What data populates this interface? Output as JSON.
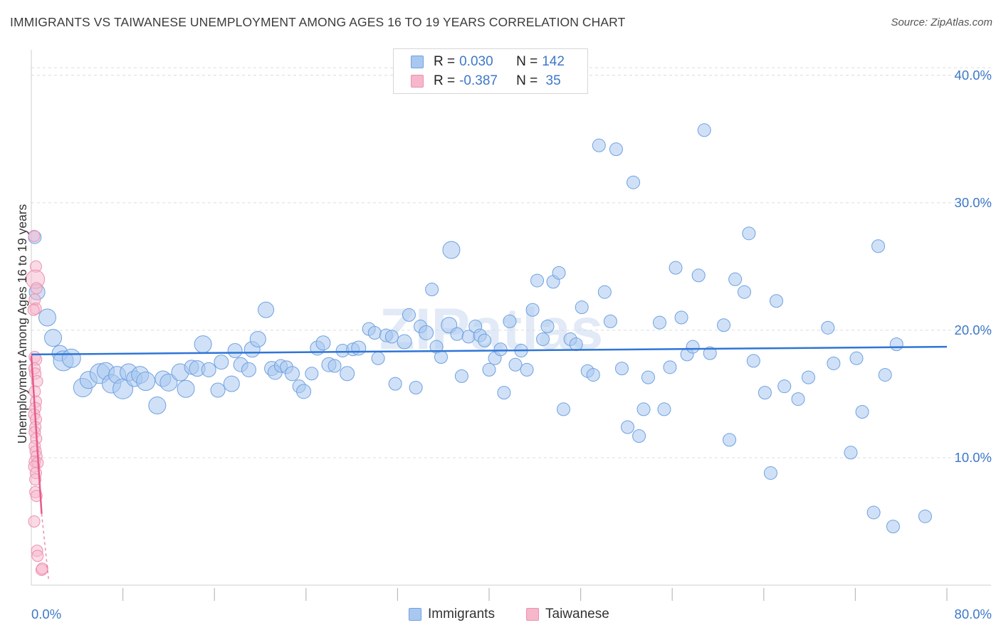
{
  "title": "IMMIGRANTS VS TAIWANESE UNEMPLOYMENT AMONG AGES 16 TO 19 YEARS CORRELATION CHART",
  "source": "Source: ZipAtlas.com",
  "colors": {
    "immigrants_fill": "#a9c8f0",
    "immigrants_stroke": "#6fa1e0",
    "immigrants_line": "#2f75d6",
    "taiwanese_fill": "#f6b7cb",
    "taiwanese_stroke": "#ee8fae",
    "taiwanese_line": "#e55c8a",
    "value_text": "#3d78c8",
    "grid": "#dcdcdc"
  },
  "legend": {
    "rows": [
      {
        "r_label": "R = ",
        "r_value": "0.030",
        "n_label": "N = ",
        "n_value": "142"
      },
      {
        "r_label": "R = ",
        "r_value": "-0.387",
        "n_label": "N = ",
        "n_value": " 35"
      }
    ]
  },
  "bottom_legend": [
    "Immigrants",
    "Taiwanese"
  ],
  "chart_data": {
    "type": "scatter",
    "ylabel": "Unemployment Among Ages 16 to 19 years",
    "xlim": [
      0,
      80
    ],
    "ylim": [
      0,
      42
    ],
    "x_tick_labels": [
      "0.0%",
      "80.0%"
    ],
    "y_ticks": [
      10,
      20,
      30,
      40
    ],
    "y_tick_labels": [
      "10.0%",
      "20.0%",
      "30.0%",
      "40.0%"
    ],
    "grid": true,
    "watermark": "ZIPatlas",
    "series": [
      {
        "name": "Immigrants",
        "trend": [
          [
            0,
            18.1
          ],
          [
            80,
            18.7
          ]
        ],
        "points": [
          [
            0.3,
            27.3,
            9
          ],
          [
            0.5,
            23.0,
            11
          ],
          [
            1.4,
            21.0,
            12
          ],
          [
            1.9,
            19.4,
            12
          ],
          [
            2.5,
            18.2,
            11
          ],
          [
            2.8,
            17.6,
            14
          ],
          [
            3.5,
            17.8,
            13
          ],
          [
            4.5,
            15.5,
            13
          ],
          [
            5.0,
            16.1,
            12
          ],
          [
            6.0,
            16.6,
            14
          ],
          [
            6.5,
            16.8,
            12
          ],
          [
            7.0,
            15.8,
            13
          ],
          [
            7.5,
            16.5,
            12
          ],
          [
            8.0,
            15.4,
            14
          ],
          [
            8.5,
            16.7,
            12
          ],
          [
            9.0,
            16.2,
            11
          ],
          [
            9.5,
            16.5,
            12
          ],
          [
            10.0,
            16.0,
            13
          ],
          [
            11.0,
            14.1,
            12
          ],
          [
            11.5,
            16.2,
            11
          ],
          [
            12.0,
            15.9,
            12
          ],
          [
            13.0,
            16.7,
            12
          ],
          [
            13.5,
            15.4,
            12
          ],
          [
            14.0,
            17.1,
            10
          ],
          [
            14.5,
            17.0,
            11
          ],
          [
            15.0,
            18.9,
            12
          ],
          [
            15.5,
            16.9,
            10
          ],
          [
            16.3,
            15.3,
            10
          ],
          [
            16.6,
            17.5,
            10
          ],
          [
            17.5,
            15.8,
            11
          ],
          [
            17.8,
            18.4,
            10
          ],
          [
            18.3,
            17.3,
            10
          ],
          [
            19.0,
            16.9,
            10
          ],
          [
            19.3,
            18.5,
            11
          ],
          [
            19.8,
            19.3,
            11
          ],
          [
            20.5,
            21.6,
            11
          ],
          [
            21.0,
            17.0,
            10
          ],
          [
            21.3,
            16.7,
            10
          ],
          [
            21.8,
            17.2,
            9
          ],
          [
            22.3,
            17.1,
            9
          ],
          [
            22.8,
            16.6,
            10
          ],
          [
            23.4,
            15.6,
            9
          ],
          [
            23.8,
            15.2,
            10
          ],
          [
            24.5,
            16.6,
            9
          ],
          [
            25.0,
            18.6,
            10
          ],
          [
            25.5,
            19.0,
            10
          ],
          [
            26.0,
            17.3,
            10
          ],
          [
            26.5,
            17.2,
            9
          ],
          [
            27.2,
            18.4,
            9
          ],
          [
            27.6,
            16.6,
            10
          ],
          [
            28.1,
            18.5,
            9
          ],
          [
            28.6,
            18.6,
            10
          ],
          [
            29.5,
            20.1,
            9
          ],
          [
            30.0,
            19.8,
            9
          ],
          [
            30.3,
            17.8,
            9
          ],
          [
            31.0,
            19.6,
            9
          ],
          [
            31.5,
            19.5,
            9
          ],
          [
            31.8,
            15.8,
            9
          ],
          [
            32.6,
            19.1,
            10
          ],
          [
            33.0,
            21.2,
            9
          ],
          [
            33.6,
            15.5,
            9
          ],
          [
            34.0,
            20.3,
            9
          ],
          [
            34.5,
            19.8,
            10
          ],
          [
            35.0,
            23.2,
            9
          ],
          [
            35.4,
            18.7,
            9
          ],
          [
            35.8,
            17.9,
            9
          ],
          [
            36.5,
            20.4,
            11
          ],
          [
            36.7,
            26.3,
            12
          ],
          [
            37.2,
            19.7,
            9
          ],
          [
            37.6,
            16.4,
            9
          ],
          [
            38.2,
            19.5,
            9
          ],
          [
            38.8,
            20.3,
            9
          ],
          [
            39.2,
            19.6,
            9
          ],
          [
            39.6,
            19.2,
            9
          ],
          [
            40.0,
            16.9,
            9
          ],
          [
            40.5,
            17.8,
            9
          ],
          [
            41.0,
            18.5,
            9
          ],
          [
            41.3,
            15.1,
            9
          ],
          [
            41.8,
            20.7,
            9
          ],
          [
            42.3,
            17.3,
            9
          ],
          [
            42.8,
            18.4,
            9
          ],
          [
            43.3,
            16.9,
            9
          ],
          [
            43.8,
            21.6,
            9
          ],
          [
            44.2,
            23.9,
            9
          ],
          [
            44.7,
            19.3,
            9
          ],
          [
            45.1,
            20.3,
            9
          ],
          [
            45.6,
            23.8,
            9
          ],
          [
            46.1,
            24.5,
            9
          ],
          [
            46.5,
            13.8,
            9
          ],
          [
            47.1,
            19.3,
            9
          ],
          [
            47.6,
            18.9,
            9
          ],
          [
            48.1,
            21.8,
            9
          ],
          [
            48.6,
            16.8,
            9
          ],
          [
            49.1,
            16.5,
            9
          ],
          [
            49.6,
            34.5,
            9
          ],
          [
            50.1,
            23.0,
            9
          ],
          [
            50.6,
            20.7,
            9
          ],
          [
            51.1,
            34.2,
            9
          ],
          [
            51.6,
            17.0,
            9
          ],
          [
            52.1,
            12.4,
            9
          ],
          [
            52.6,
            31.6,
            9
          ],
          [
            53.1,
            11.7,
            9
          ],
          [
            53.5,
            13.8,
            9
          ],
          [
            53.9,
            16.3,
            9
          ],
          [
            54.9,
            20.6,
            9
          ],
          [
            55.3,
            13.8,
            9
          ],
          [
            55.8,
            17.1,
            9
          ],
          [
            56.3,
            24.9,
            9
          ],
          [
            56.8,
            21.0,
            9
          ],
          [
            57.3,
            18.1,
            9
          ],
          [
            57.8,
            18.7,
            9
          ],
          [
            58.3,
            24.3,
            9
          ],
          [
            58.8,
            35.7,
            9
          ],
          [
            59.3,
            18.2,
            9
          ],
          [
            60.5,
            20.4,
            9
          ],
          [
            61.0,
            11.4,
            9
          ],
          [
            61.5,
            24.0,
            9
          ],
          [
            62.3,
            23.0,
            9
          ],
          [
            62.7,
            27.6,
            9
          ],
          [
            63.1,
            17.6,
            9
          ],
          [
            64.1,
            15.1,
            9
          ],
          [
            64.6,
            8.8,
            9
          ],
          [
            65.1,
            22.3,
            9
          ],
          [
            65.8,
            15.6,
            9
          ],
          [
            67.0,
            14.6,
            9
          ],
          [
            67.9,
            16.3,
            9
          ],
          [
            69.6,
            20.2,
            9
          ],
          [
            70.1,
            17.4,
            9
          ],
          [
            71.6,
            10.4,
            9
          ],
          [
            72.1,
            17.8,
            9
          ],
          [
            72.6,
            13.6,
            9
          ],
          [
            73.6,
            5.7,
            9
          ],
          [
            74.0,
            26.6,
            9
          ],
          [
            74.6,
            16.5,
            9
          ],
          [
            75.3,
            4.6,
            9
          ],
          [
            75.6,
            18.9,
            9
          ],
          [
            78.1,
            5.4,
            9
          ]
        ]
      },
      {
        "name": "Taiwanese",
        "trend": [
          [
            0.0,
            18.0
          ],
          [
            0.9,
            5.6
          ]
        ],
        "trend_dashed": [
          [
            0.9,
            5.6
          ],
          [
            1.5,
            0.5
          ]
        ],
        "points": [
          [
            0.25,
            27.4,
            8
          ],
          [
            0.4,
            25.0,
            8
          ],
          [
            0.35,
            24.0,
            13
          ],
          [
            0.45,
            23.3,
            8
          ],
          [
            0.3,
            22.4,
            8
          ],
          [
            0.38,
            21.7,
            8
          ],
          [
            0.2,
            21.6,
            8
          ],
          [
            0.3,
            17.9,
            8
          ],
          [
            0.42,
            17.7,
            8
          ],
          [
            0.28,
            17.0,
            8
          ],
          [
            0.35,
            16.6,
            8
          ],
          [
            0.5,
            16.0,
            8
          ],
          [
            0.3,
            15.2,
            8
          ],
          [
            0.4,
            14.4,
            8
          ],
          [
            0.35,
            13.9,
            8
          ],
          [
            0.25,
            13.4,
            8
          ],
          [
            0.4,
            13.0,
            8
          ],
          [
            0.35,
            12.4,
            8
          ],
          [
            0.3,
            12.0,
            8
          ],
          [
            0.42,
            11.5,
            8
          ],
          [
            0.3,
            10.9,
            8
          ],
          [
            0.38,
            10.5,
            8
          ],
          [
            0.45,
            10.1,
            8
          ],
          [
            0.3,
            9.7,
            8
          ],
          [
            0.55,
            9.6,
            8
          ],
          [
            0.25,
            9.3,
            8
          ],
          [
            0.4,
            8.8,
            8
          ],
          [
            0.35,
            8.3,
            8
          ],
          [
            0.35,
            7.3,
            8
          ],
          [
            0.45,
            7.0,
            8
          ],
          [
            0.25,
            5.0,
            8
          ],
          [
            0.5,
            2.7,
            8
          ],
          [
            0.55,
            2.3,
            8
          ],
          [
            0.9,
            1.2,
            8
          ],
          [
            0.95,
            1.3,
            8
          ]
        ]
      }
    ]
  }
}
